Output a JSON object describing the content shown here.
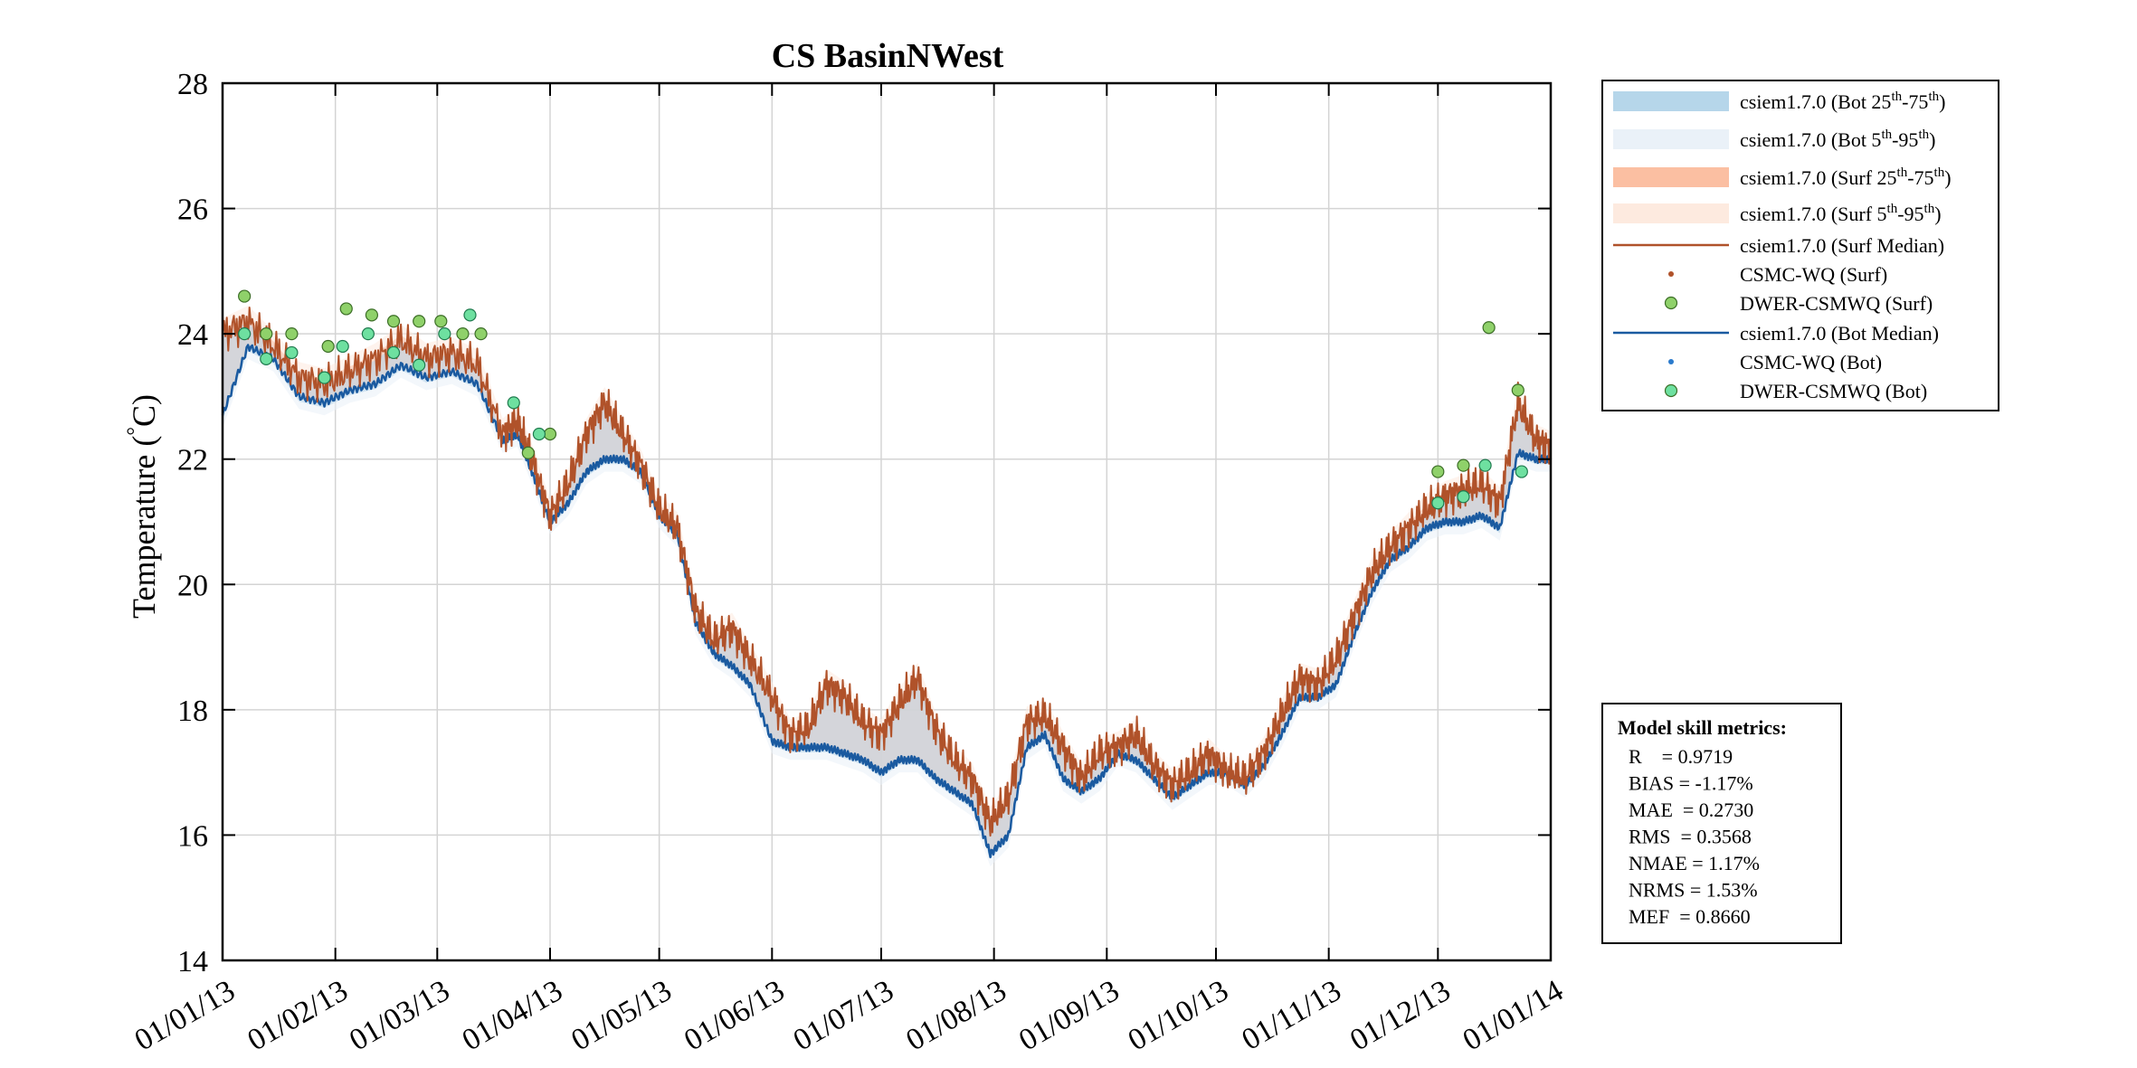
{
  "chart_data": {
    "type": "line",
    "title": "CS BasinNWest",
    "ylabel": "Temperature (°C)",
    "ylabel_text": "Temperature (",
    "ylabel_degree": "°",
    "ylabel_unit": "C)",
    "xlim": [
      "2013-01-01",
      "2014-01-01"
    ],
    "ylim": [
      14,
      28
    ],
    "grid": true,
    "x_ticks": [
      "01/01/13",
      "01/02/13",
      "01/03/13",
      "01/04/13",
      "01/05/13",
      "01/06/13",
      "01/07/13",
      "01/08/13",
      "01/09/13",
      "01/10/13",
      "01/11/13",
      "01/12/13",
      "01/01/14"
    ],
    "x_tick_dates": [
      "2013-01-01",
      "2013-02-01",
      "2013-03-01",
      "2013-04-01",
      "2013-05-01",
      "2013-06-01",
      "2013-07-01",
      "2013-08-01",
      "2013-09-01",
      "2013-10-01",
      "2013-11-01",
      "2013-12-01",
      "2014-01-01"
    ],
    "y_ticks": [
      14,
      16,
      18,
      20,
      22,
      24,
      26,
      28
    ],
    "legend_position": "outside-right-top",
    "legend": [
      {
        "label": "csiem1.7.0 (Bot 25",
        "sup1": "th",
        "mid": "-75",
        "sup2": "th",
        "end": ")",
        "kind": "band",
        "color": "#b6d6ea"
      },
      {
        "label": "csiem1.7.0 (Bot 5",
        "sup1": "th",
        "mid": "-95",
        "sup2": "th",
        "end": ")",
        "kind": "band",
        "color": "#eaf1f8"
      },
      {
        "label": "csiem1.7.0 (Surf 25",
        "sup1": "th",
        "mid": "-75",
        "sup2": "th",
        "end": ")",
        "kind": "band",
        "color": "#fbbfa2"
      },
      {
        "label": "csiem1.7.0 (Surf 5",
        "sup1": "th",
        "mid": "-95",
        "sup2": "th",
        "end": ")",
        "kind": "band",
        "color": "#fdeadf"
      },
      {
        "label": "csiem1.7.0 (Surf Median)",
        "sup1": "",
        "mid": "",
        "sup2": "",
        "end": "",
        "kind": "line",
        "color": "#b0522a"
      },
      {
        "label": "CSMC-WQ (Surf)",
        "sup1": "",
        "mid": "",
        "sup2": "",
        "end": "",
        "kind": "smalldot",
        "color": "#b0522a"
      },
      {
        "label": "DWER-CSMWQ (Surf)",
        "sup1": "",
        "mid": "",
        "sup2": "",
        "end": "",
        "kind": "dot",
        "color": "#8fd16a"
      },
      {
        "label": "csiem1.7.0 (Bot Median)",
        "sup1": "",
        "mid": "",
        "sup2": "",
        "end": "",
        "kind": "line",
        "color": "#1a5aa0"
      },
      {
        "label": "CSMC-WQ (Bot)",
        "sup1": "",
        "mid": "",
        "sup2": "",
        "end": "",
        "kind": "smalldot",
        "color": "#2a7acc"
      },
      {
        "label": "DWER-CSMWQ (Bot)",
        "sup1": "",
        "mid": "",
        "sup2": "",
        "end": "",
        "kind": "dot",
        "color": "#6ee0a0"
      }
    ],
    "series": [
      {
        "name": "csiem1.7.0 (Surf Median)",
        "color": "#b0522a",
        "x": [
          "2013-01-01",
          "2013-01-08",
          "2013-01-15",
          "2013-01-22",
          "2013-01-29",
          "2013-02-05",
          "2013-02-12",
          "2013-02-19",
          "2013-02-26",
          "2013-03-05",
          "2013-03-12",
          "2013-03-19",
          "2013-03-23",
          "2013-03-27",
          "2013-04-01",
          "2013-04-06",
          "2013-04-11",
          "2013-04-16",
          "2013-04-21",
          "2013-04-26",
          "2013-05-01",
          "2013-05-06",
          "2013-05-11",
          "2013-05-16",
          "2013-05-21",
          "2013-05-26",
          "2013-06-01",
          "2013-06-06",
          "2013-06-11",
          "2013-06-16",
          "2013-06-21",
          "2013-06-26",
          "2013-07-01",
          "2013-07-06",
          "2013-07-11",
          "2013-07-16",
          "2013-07-21",
          "2013-07-26",
          "2013-07-31",
          "2013-08-05",
          "2013-08-10",
          "2013-08-15",
          "2013-08-20",
          "2013-08-25",
          "2013-08-30",
          "2013-09-04",
          "2013-09-09",
          "2013-09-14",
          "2013-09-19",
          "2013-09-24",
          "2013-09-29",
          "2013-10-04",
          "2013-10-09",
          "2013-10-14",
          "2013-10-19",
          "2013-10-24",
          "2013-10-29",
          "2013-11-03",
          "2013-11-08",
          "2013-11-13",
          "2013-11-18",
          "2013-11-23",
          "2013-11-28",
          "2013-12-03",
          "2013-12-08",
          "2013-12-13",
          "2013-12-18",
          "2013-12-23",
          "2013-12-28",
          "2014-01-01"
        ],
        "y": [
          24.0,
          24.2,
          23.8,
          23.3,
          23.2,
          23.4,
          23.6,
          23.9,
          23.6,
          23.7,
          23.5,
          22.4,
          22.6,
          22.0,
          21.1,
          21.6,
          22.4,
          22.9,
          22.4,
          21.9,
          21.2,
          20.9,
          19.6,
          19.1,
          19.3,
          18.8,
          18.2,
          17.6,
          17.7,
          18.4,
          18.2,
          17.8,
          17.6,
          18.1,
          18.5,
          17.7,
          17.2,
          16.9,
          16.2,
          16.6,
          17.8,
          17.9,
          17.4,
          16.9,
          17.3,
          17.4,
          17.6,
          17.1,
          16.8,
          17.0,
          17.3,
          17.0,
          16.9,
          17.3,
          17.9,
          18.5,
          18.4,
          18.8,
          19.5,
          20.2,
          20.6,
          20.9,
          21.2,
          21.4,
          21.5,
          21.6,
          21.3,
          22.9,
          22.3,
          22.2
        ]
      },
      {
        "name": "csiem1.7.0 (Bot Median)",
        "color": "#1a5aa0",
        "x": [
          "2013-01-01",
          "2013-01-08",
          "2013-01-15",
          "2013-01-22",
          "2013-01-29",
          "2013-02-05",
          "2013-02-12",
          "2013-02-19",
          "2013-02-26",
          "2013-03-05",
          "2013-03-12",
          "2013-03-19",
          "2013-03-23",
          "2013-03-27",
          "2013-04-01",
          "2013-04-06",
          "2013-04-11",
          "2013-04-16",
          "2013-04-21",
          "2013-04-26",
          "2013-05-01",
          "2013-05-06",
          "2013-05-11",
          "2013-05-16",
          "2013-05-21",
          "2013-05-26",
          "2013-06-01",
          "2013-06-06",
          "2013-06-11",
          "2013-06-16",
          "2013-06-21",
          "2013-06-26",
          "2013-07-01",
          "2013-07-06",
          "2013-07-11",
          "2013-07-16",
          "2013-07-21",
          "2013-07-26",
          "2013-07-31",
          "2013-08-05",
          "2013-08-10",
          "2013-08-15",
          "2013-08-20",
          "2013-08-25",
          "2013-08-30",
          "2013-09-04",
          "2013-09-09",
          "2013-09-14",
          "2013-09-19",
          "2013-09-24",
          "2013-09-29",
          "2013-10-04",
          "2013-10-09",
          "2013-10-14",
          "2013-10-19",
          "2013-10-24",
          "2013-10-29",
          "2013-11-03",
          "2013-11-08",
          "2013-11-13",
          "2013-11-18",
          "2013-11-23",
          "2013-11-28",
          "2013-12-03",
          "2013-12-08",
          "2013-12-13",
          "2013-12-18",
          "2013-12-23",
          "2013-12-28",
          "2014-01-01"
        ],
        "y": [
          22.7,
          23.8,
          23.6,
          23.0,
          22.9,
          23.1,
          23.2,
          23.5,
          23.3,
          23.4,
          23.2,
          22.3,
          22.4,
          21.8,
          21.0,
          21.3,
          21.8,
          22.0,
          22.0,
          21.8,
          21.1,
          20.8,
          19.4,
          18.9,
          18.7,
          18.4,
          17.5,
          17.4,
          17.4,
          17.4,
          17.3,
          17.2,
          17.0,
          17.2,
          17.2,
          16.9,
          16.7,
          16.5,
          15.7,
          16.0,
          17.4,
          17.6,
          16.9,
          16.7,
          16.9,
          17.3,
          17.2,
          16.9,
          16.6,
          16.8,
          17.0,
          17.0,
          16.8,
          17.1,
          17.6,
          18.2,
          18.2,
          18.4,
          19.2,
          19.9,
          20.4,
          20.6,
          20.9,
          21.0,
          21.0,
          21.1,
          20.9,
          22.1,
          22.0,
          22.0
        ]
      },
      {
        "name": "DWER-CSMWQ (Surf)",
        "color": "#8fd16a",
        "x": [
          "2013-01-07",
          "2013-01-13",
          "2013-01-20",
          "2013-01-30",
          "2013-02-04",
          "2013-02-11",
          "2013-02-17",
          "2013-02-24",
          "2013-03-02",
          "2013-03-08",
          "2013-03-13",
          "2013-03-26",
          "2013-04-01",
          "2013-12-01",
          "2013-12-08",
          "2013-12-15",
          "2013-12-23"
        ],
        "y": [
          24.6,
          24.0,
          24.0,
          23.8,
          24.4,
          24.3,
          24.2,
          24.2,
          24.2,
          24.0,
          24.0,
          22.1,
          22.4,
          21.8,
          21.9,
          24.1,
          23.1
        ]
      },
      {
        "name": "DWER-CSMWQ (Bot)",
        "color": "#6ee0a0",
        "x": [
          "2013-01-07",
          "2013-01-13",
          "2013-01-20",
          "2013-01-29",
          "2013-02-03",
          "2013-02-10",
          "2013-02-17",
          "2013-02-24",
          "2013-03-03",
          "2013-03-10",
          "2013-03-22",
          "2013-03-29",
          "2013-12-01",
          "2013-12-08",
          "2013-12-14",
          "2013-12-24"
        ],
        "y": [
          24.0,
          23.6,
          23.7,
          23.3,
          23.8,
          24.0,
          23.7,
          23.5,
          24.0,
          24.3,
          22.9,
          22.4,
          21.3,
          21.4,
          21.9,
          21.8
        ]
      }
    ],
    "skill_metrics": {
      "title": "Model skill metrics:",
      "rows": [
        "R    = 0.9719",
        "BIAS = -1.17%",
        "MAE  = 0.2730",
        "RMS  = 0.3568",
        "NMAE = 1.17%",
        "NRMS = 1.53%",
        "MEF  = 0.8660"
      ]
    }
  }
}
